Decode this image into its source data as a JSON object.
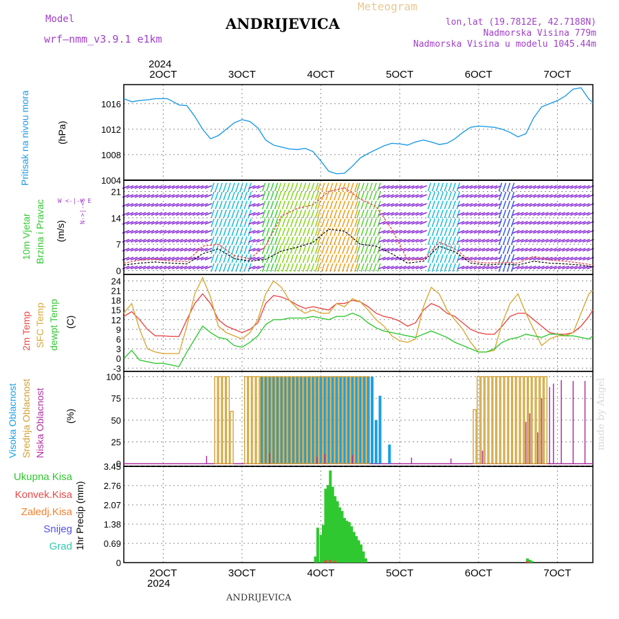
{
  "header": {
    "model_label": "Model",
    "model_name": "wrf—nmm_v3.9.1  e1km",
    "station": "ANDRIJEVICA",
    "chart_title": "Meteogram",
    "coords": "lon,lat (19.7812E, 42.7188N)",
    "altitude": "Nadmorska Visina 779m",
    "model_altitude": "Nadmorska Visina u modelu 1045.44m"
  },
  "footer": {
    "station": "ANDRIJEVICA",
    "credit": "made by Angel"
  },
  "time_axis": {
    "year": "2024",
    "ticks": [
      {
        "label": "2OCT",
        "day": 2
      },
      {
        "label": "3OCT",
        "day": 3
      },
      {
        "label": "4OCT",
        "day": 4
      },
      {
        "label": "5OCT",
        "day": 5
      },
      {
        "label": "6OCT",
        "day": 6
      },
      {
        "label": "7OCT",
        "day": 7
      }
    ],
    "range_days": [
      1.5,
      7.45
    ]
  },
  "colors": {
    "pressure": "#1e9be6",
    "temp_2m": "#e84848",
    "temp_sfc": "#d8a838",
    "dewpoint": "#30c830",
    "cloud_high": "#18a0e8",
    "cloud_mid": "#d0a030",
    "cloud_low": "#b030a0",
    "rain_total": "#30c830",
    "rain_convective": "#e84848",
    "rain_freezing": "#f08030",
    "snow": "#5050e8",
    "hail": "#30c8b0"
  },
  "chart_data": [
    {
      "type": "line",
      "panel": "pressure",
      "ylabel": "Pritisak na nivou mora",
      "unit": "(hPa)",
      "ylim": [
        1004,
        1019
      ],
      "yticks": [
        1004,
        1008,
        1012,
        1016
      ],
      "series": [
        {
          "x": [
            1.5,
            1.6,
            1.7,
            1.8,
            1.9,
            2.0,
            2.05,
            2.1,
            2.2,
            2.3,
            2.4,
            2.5,
            2.6,
            2.7,
            2.8,
            2.9,
            3.0,
            3.1,
            3.2,
            3.3,
            3.4,
            3.5,
            3.6,
            3.7,
            3.8,
            3.9,
            4.0,
            4.1,
            4.2,
            4.3,
            4.4,
            4.5,
            4.6,
            4.7,
            4.8,
            4.9,
            5.0,
            5.1,
            5.2,
            5.3,
            5.4,
            5.5,
            5.6,
            5.7,
            5.8,
            5.9,
            6.0,
            6.1,
            6.2,
            6.3,
            6.4,
            6.5,
            6.6,
            6.7,
            6.8,
            6.9,
            7.0,
            7.1,
            7.2,
            7.3,
            7.4,
            7.45
          ],
          "values": [
            1016.8,
            1016.3,
            1016.5,
            1016.6,
            1016.8,
            1016.8,
            1016.8,
            1016.5,
            1015.8,
            1015.7,
            1014.0,
            1012.0,
            1010.5,
            1011.0,
            1012.0,
            1013.0,
            1013.5,
            1013.2,
            1012.2,
            1010.3,
            1009.5,
            1009.2,
            1008.9,
            1008.8,
            1009.0,
            1008.5,
            1007.0,
            1005.4,
            1005.0,
            1005.1,
            1006.2,
            1007.5,
            1008.2,
            1008.8,
            1009.4,
            1009.8,
            1009.7,
            1009.5,
            1010.0,
            1010.3,
            1010.0,
            1009.6,
            1009.8,
            1010.5,
            1011.5,
            1012.3,
            1012.5,
            1012.4,
            1012.3,
            1012.0,
            1011.5,
            1010.8,
            1011.3,
            1013.8,
            1015.5,
            1016.0,
            1016.5,
            1017.2,
            1018.3,
            1018.5,
            1016.7,
            1016.2
          ]
        }
      ]
    },
    {
      "type": "line",
      "panel": "wind",
      "ylabel": "10m Vjetar Brzina i Pravac",
      "unit": "(m/s)",
      "legend_compass": "W <-|-> E",
      "legend_compass_vertical": "N->|-<S",
      "ylim": [
        -1,
        24
      ],
      "yticks": [
        0,
        7,
        14,
        21
      ],
      "series": [
        {
          "name": "speed",
          "x": [
            1.5,
            1.7,
            1.9,
            2.1,
            2.3,
            2.5,
            2.7,
            2.9,
            3.1,
            3.3,
            3.5,
            3.7,
            3.9,
            4.1,
            4.3,
            4.5,
            4.7,
            4.9,
            5.1,
            5.3,
            5.5,
            5.7,
            5.9,
            6.1,
            6.3,
            6.5,
            6.7,
            6.9,
            7.1,
            7.3,
            7.45
          ],
          "values": [
            1.5,
            2.0,
            2.3,
            2.0,
            1.8,
            4.5,
            5.8,
            3.2,
            2.5,
            3.0,
            5.2,
            6.2,
            7.5,
            11.0,
            10.5,
            7.0,
            6.5,
            4.5,
            2.0,
            2.5,
            6.5,
            5.0,
            2.0,
            1.5,
            1.8,
            1.5,
            2.5,
            2.0,
            1.8,
            1.5,
            1.0
          ]
        },
        {
          "name": "gust",
          "x": [
            1.5,
            1.7,
            1.9,
            2.1,
            2.3,
            2.5,
            2.7,
            2.9,
            3.1,
            3.3,
            3.5,
            3.7,
            3.9,
            4.1,
            4.3,
            4.5,
            4.7,
            4.9,
            5.1,
            5.3,
            5.5,
            5.7,
            5.9,
            6.1,
            6.3,
            6.5,
            6.7,
            6.9,
            7.1,
            7.3,
            7.45
          ],
          "values": [
            2.0,
            2.8,
            3.0,
            2.6,
            2.4,
            6.5,
            7.0,
            4.0,
            3.2,
            6.5,
            14.5,
            16.5,
            17.5,
            21.0,
            22.0,
            19.0,
            17.0,
            11.0,
            2.8,
            3.0,
            7.5,
            5.8,
            2.5,
            2.0,
            2.2,
            2.0,
            3.8,
            2.8,
            2.5,
            2.0,
            1.5
          ]
        }
      ]
    },
    {
      "type": "line",
      "panel": "temperature",
      "ylabel": "2m Temp / SFC Temp / dewpt Temp",
      "unit": "(C)",
      "ylim": [
        -4,
        26
      ],
      "yticks": [
        -3,
        0,
        3,
        6,
        9,
        12,
        15,
        18,
        21,
        24
      ],
      "series": [
        {
          "name": "2m Temp",
          "x": [
            1.5,
            1.6,
            1.7,
            1.8,
            1.9,
            2.0,
            2.1,
            2.2,
            2.3,
            2.4,
            2.5,
            2.6,
            2.7,
            2.8,
            2.9,
            3.0,
            3.1,
            3.2,
            3.3,
            3.4,
            3.5,
            3.6,
            3.7,
            3.8,
            3.9,
            4.0,
            4.1,
            4.2,
            4.3,
            4.4,
            4.5,
            4.6,
            4.7,
            4.8,
            4.9,
            5.0,
            5.1,
            5.2,
            5.3,
            5.4,
            5.5,
            5.6,
            5.7,
            5.8,
            5.9,
            6.0,
            6.1,
            6.2,
            6.3,
            6.4,
            6.5,
            6.6,
            6.7,
            6.8,
            6.9,
            7.0,
            7.1,
            7.2,
            7.3,
            7.4,
            7.45
          ],
          "values": [
            13,
            14.5,
            12,
            9,
            7,
            7,
            6.8,
            6.8,
            12,
            17,
            20,
            17,
            12,
            10,
            9,
            8,
            9,
            11,
            17,
            19.5,
            19,
            18,
            16.5,
            15.5,
            16,
            15.5,
            15,
            17,
            17,
            18,
            17.5,
            16,
            14,
            13,
            12.5,
            11.5,
            10,
            11,
            15,
            17,
            16,
            14,
            13,
            11,
            9,
            8,
            7.5,
            7.5,
            10,
            13,
            14,
            14,
            12,
            10,
            8,
            7.5,
            7.5,
            8,
            10,
            13,
            15
          ]
        },
        {
          "name": "SFC Temp",
          "x": [
            1.5,
            1.6,
            1.7,
            1.8,
            1.9,
            2.0,
            2.1,
            2.2,
            2.3,
            2.4,
            2.5,
            2.6,
            2.7,
            2.8,
            2.9,
            3.0,
            3.1,
            3.2,
            3.3,
            3.4,
            3.5,
            3.6,
            3.7,
            3.8,
            3.9,
            4.0,
            4.1,
            4.2,
            4.3,
            4.4,
            4.5,
            4.6,
            4.7,
            4.8,
            4.9,
            5.0,
            5.1,
            5.2,
            5.3,
            5.4,
            5.5,
            5.6,
            5.7,
            5.8,
            5.9,
            6.0,
            6.1,
            6.2,
            6.3,
            6.4,
            6.5,
            6.6,
            6.7,
            6.8,
            6.9,
            7.0,
            7.1,
            7.2,
            7.3,
            7.4,
            7.45
          ],
          "values": [
            14,
            17,
            9,
            3,
            2,
            1.5,
            1.5,
            1.5,
            10,
            20,
            25,
            19,
            10,
            8,
            7,
            6,
            8,
            12,
            20,
            24,
            22,
            18,
            15.5,
            14,
            15,
            14,
            14,
            17,
            16,
            18.5,
            17.5,
            15,
            12,
            10,
            7,
            5.5,
            5,
            6,
            16,
            22,
            20,
            15,
            12,
            9,
            5,
            2,
            2,
            2.5,
            11,
            17,
            20,
            14,
            9,
            4,
            6,
            7,
            7,
            8,
            14,
            20,
            21
          ]
        },
        {
          "name": "dewpt Temp",
          "x": [
            1.5,
            1.6,
            1.7,
            1.8,
            1.9,
            2.0,
            2.1,
            2.2,
            2.3,
            2.4,
            2.5,
            2.6,
            2.7,
            2.8,
            2.9,
            3.0,
            3.1,
            3.2,
            3.3,
            3.4,
            3.5,
            3.6,
            3.7,
            3.8,
            3.9,
            4.0,
            4.1,
            4.2,
            4.3,
            4.4,
            4.5,
            4.6,
            4.7,
            4.8,
            4.9,
            5.0,
            5.1,
            5.2,
            5.3,
            5.4,
            5.5,
            5.6,
            5.7,
            5.8,
            5.9,
            6.0,
            6.1,
            6.2,
            6.3,
            6.4,
            6.5,
            6.6,
            6.7,
            6.8,
            6.9,
            7.0,
            7.1,
            7.2,
            7.3,
            7.4,
            7.45
          ],
          "values": [
            0,
            2.5,
            -0.5,
            -1,
            -1.5,
            -1.5,
            -2,
            -2.5,
            2,
            6,
            10,
            8,
            6.5,
            6,
            4,
            3.5,
            5,
            7,
            10.5,
            12,
            12,
            12.5,
            12.5,
            12.5,
            13,
            12.5,
            12,
            13,
            13,
            14,
            13,
            11,
            9.5,
            8.5,
            8,
            7.5,
            7,
            6.5,
            7.5,
            8.5,
            7.5,
            6.5,
            5,
            4,
            3,
            2,
            2,
            3,
            5,
            6,
            6.5,
            7.5,
            7,
            6.5,
            7.5,
            7.5,
            7,
            7,
            6.5,
            6,
            7
          ]
        }
      ]
    },
    {
      "type": "bar",
      "panel": "clouds",
      "ylabel": "Visoka Oblacnost / Srednja Oblacnost / Niska Oblacnost",
      "unit": "(%)",
      "ylim": [
        -3,
        106
      ],
      "yticks": [
        0,
        25,
        50,
        75,
        100
      ],
      "series": [
        {
          "name": "Visoka Oblacnost",
          "x": [
            3.25,
            3.3,
            3.35,
            3.4,
            3.45,
            3.5,
            3.55,
            3.6,
            3.65,
            3.7,
            3.75,
            3.8,
            3.85,
            3.9,
            3.95,
            4.0,
            4.05,
            4.1,
            4.15,
            4.2,
            4.25,
            4.3,
            4.35,
            4.4,
            4.45,
            4.5,
            4.55,
            4.6,
            4.65,
            4.7,
            4.75,
            4.87
          ],
          "values": [
            100,
            100,
            100,
            100,
            100,
            100,
            100,
            100,
            100,
            100,
            100,
            100,
            100,
            100,
            100,
            100,
            100,
            100,
            100,
            100,
            100,
            100,
            100,
            100,
            100,
            100,
            100,
            100,
            100,
            50,
            78,
            22
          ]
        },
        {
          "name": "Srednja Oblacnost",
          "x": [
            2.67,
            2.72,
            2.77,
            2.82,
            2.87,
            3.05,
            3.1,
            3.15,
            3.2,
            3.25,
            3.3,
            3.35,
            3.4,
            3.45,
            3.5,
            3.55,
            3.6,
            3.65,
            3.7,
            3.75,
            3.8,
            3.85,
            3.9,
            3.95,
            4.0,
            4.05,
            4.1,
            4.15,
            4.2,
            4.25,
            4.3,
            4.35,
            4.4,
            4.45,
            4.5,
            4.55,
            4.6,
            5.95,
            6.0,
            6.05,
            6.1,
            6.15,
            6.2,
            6.25,
            6.3,
            6.35,
            6.4,
            6.45,
            6.5,
            6.55,
            6.6,
            6.65,
            6.7,
            6.75,
            6.8,
            6.85
          ],
          "values": [
            100,
            100,
            100,
            100,
            60,
            100,
            100,
            100,
            100,
            100,
            100,
            100,
            100,
            100,
            100,
            100,
            100,
            100,
            100,
            100,
            100,
            100,
            100,
            100,
            100,
            100,
            100,
            100,
            100,
            100,
            100,
            100,
            100,
            100,
            100,
            100,
            100,
            62,
            100,
            100,
            100,
            100,
            100,
            100,
            100,
            100,
            100,
            100,
            100,
            100,
            100,
            100,
            100,
            100,
            100,
            100
          ]
        },
        {
          "name": "Niska Oblacnost",
          "x": [
            2.55,
            3.35,
            3.95,
            4.05,
            4.4,
            5.15,
            5.65,
            6.05,
            6.6,
            6.65,
            6.75,
            6.8,
            6.9,
            6.95,
            7.05,
            7.2,
            7.35
          ],
          "values": [
            9,
            12,
            8,
            11,
            10,
            7,
            6,
            15,
            48,
            58,
            36,
            75,
            88,
            92,
            96,
            95,
            95
          ]
        }
      ]
    },
    {
      "type": "bar",
      "panel": "precipitation",
      "ylabel": "1hr Precip",
      "unit": "(mm)",
      "legend": [
        "Ukupna Kisa",
        "Konvek.Kisa",
        "Zaledj.Kisa",
        "Snijeg",
        "Grad"
      ],
      "ylim": [
        0,
        3.45
      ],
      "yticks": [
        0,
        0.69,
        1.38,
        2.07,
        2.76,
        3.45
      ],
      "series": [
        {
          "name": "Ukupna Kisa",
          "x": [
            3.93,
            3.96,
            4.0,
            4.03,
            4.06,
            4.09,
            4.12,
            4.15,
            4.18,
            4.21,
            4.24,
            4.27,
            4.3,
            4.33,
            4.36,
            4.39,
            4.42,
            4.45,
            4.48,
            4.51,
            4.54,
            4.57,
            6.62,
            6.65,
            6.68
          ],
          "values": [
            0.22,
            1.25,
            1.0,
            1.35,
            2.65,
            2.78,
            3.3,
            2.72,
            2.38,
            2.2,
            1.98,
            1.85,
            1.6,
            1.5,
            1.45,
            1.3,
            1.1,
            0.95,
            0.8,
            0.65,
            0.4,
            0.15,
            0.15,
            0.1,
            0.06
          ]
        },
        {
          "name": "Konvek.Kisa",
          "x": [
            4.06,
            4.12,
            4.18,
            6.62
          ],
          "values": [
            0.08,
            0.1,
            0.06,
            0.05
          ]
        }
      ]
    }
  ]
}
